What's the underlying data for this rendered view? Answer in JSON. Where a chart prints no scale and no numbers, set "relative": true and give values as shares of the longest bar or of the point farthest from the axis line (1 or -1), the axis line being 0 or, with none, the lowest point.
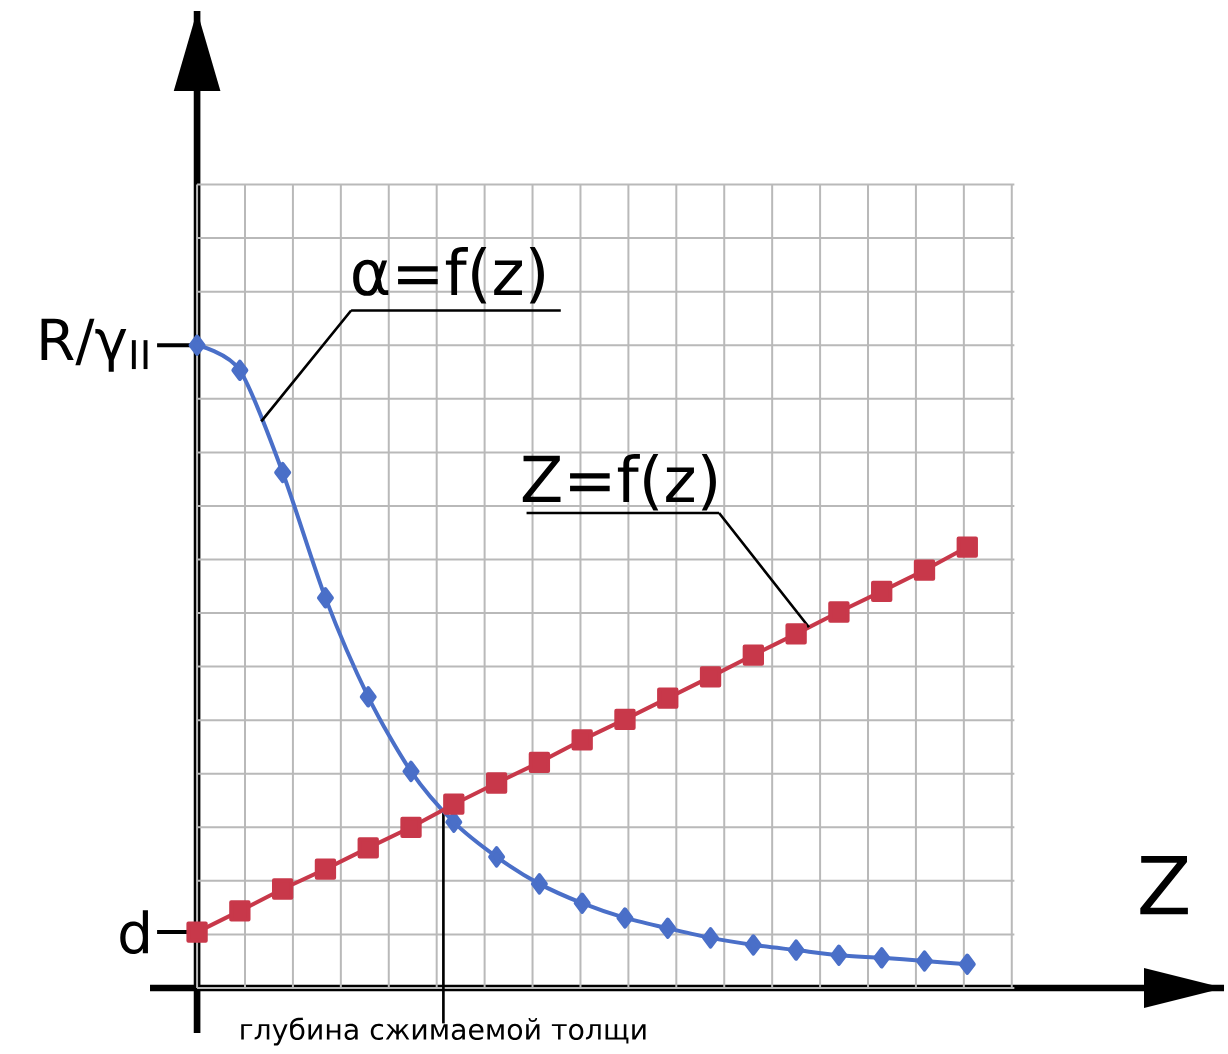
{
  "chart_data": {
    "type": "line",
    "relative": true,
    "xlabel": "Z",
    "categories": [
      null,
      null,
      null,
      null,
      null,
      null,
      null,
      null,
      null,
      null,
      null,
      null,
      null,
      null,
      null,
      null,
      null,
      null,
      null
    ],
    "grid": true,
    "legend": false,
    "line_style": "solid",
    "series": [
      {
        "name": "α=f(z)",
        "color": "#4a6fc8",
        "marker": "diamond",
        "values": [
          1,
          0.961,
          0.802,
          0.607,
          0.453,
          0.337,
          0.258,
          0.204,
          0.162,
          0.132,
          0.109,
          0.093,
          0.078,
          0.067,
          0.059,
          0.051,
          0.047,
          0.042,
          0.037
        ]
      },
      {
        "name": "Z=f(z)",
        "color": "#c8384a",
        "marker": "square",
        "values": [
          0.087,
          0.12,
          0.154,
          0.185,
          0.218,
          0.25,
          0.286,
          0.319,
          0.351,
          0.386,
          0.418,
          0.451,
          0.484,
          0.518,
          0.551,
          0.585,
          0.617,
          0.65,
          0.686
        ]
      }
    ],
    "annotations": [
      "R/γ$_{II}$",
      "d",
      "глубина сжимаемой толщи"
    ]
  }
}
